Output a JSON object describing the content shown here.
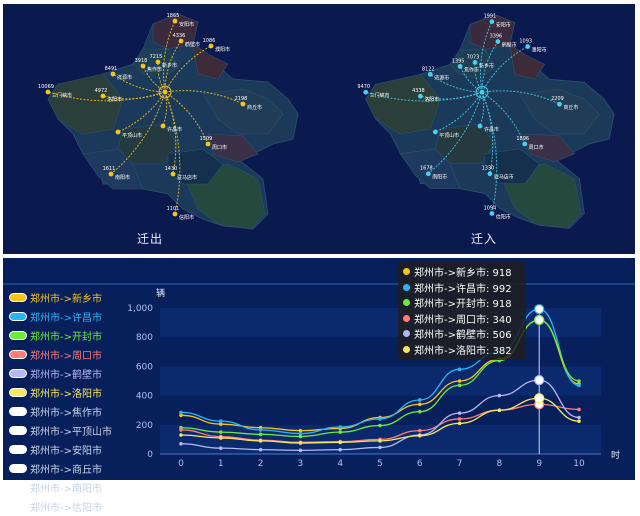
{
  "colors": {
    "out_flow": "#f5c518",
    "in_flow": "#46d2ea",
    "panel_bg": "#0a1a4f",
    "chart_bg": "#07205c"
  },
  "maps": [
    {
      "title": "迁出",
      "flow_color": "#f5c518",
      "cities": [
        {
          "name": "1865",
          "sub": "安阳市"
        },
        {
          "name": "4336",
          "sub": "鹤壁市"
        },
        {
          "name": "1086",
          "sub": "濮阳市"
        },
        {
          "name": "3918",
          "sub": "焦作市"
        },
        {
          "name": "7215",
          "sub": "新乡市"
        },
        {
          "name": "8491",
          "sub": "济源市"
        },
        {
          "name": "10069",
          "sub": "三门峡市"
        },
        {
          "name": "4972",
          "sub": "洛阳市"
        },
        {
          "name": "2198",
          "sub": "商丘市"
        },
        {
          "name": "",
          "sub": "平顶山市"
        },
        {
          "name": "",
          "sub": "许昌市"
        },
        {
          "name": "1509",
          "sub": "周口市"
        },
        {
          "name": "1611",
          "sub": "南阳市"
        },
        {
          "name": "1430",
          "sub": "驻马店市"
        },
        {
          "name": "1101",
          "sub": "信阳市"
        }
      ]
    },
    {
      "title": "迁入",
      "flow_color": "#46d2ea",
      "cities": [
        {
          "name": "1991",
          "sub": "安阳市"
        },
        {
          "name": "3396",
          "sub": "鹤壁市"
        },
        {
          "name": "1093",
          "sub": "濮阳市"
        },
        {
          "name": "1395",
          "sub": "焦作市"
        },
        {
          "name": "7073",
          "sub": "新乡市"
        },
        {
          "name": "8122",
          "sub": "济源市"
        },
        {
          "name": "9470",
          "sub": "三门峡市"
        },
        {
          "name": "4338",
          "sub": "洛阳市"
        },
        {
          "name": "2209",
          "sub": "商丘市"
        },
        {
          "name": "",
          "sub": "平顶山市"
        },
        {
          "name": "",
          "sub": "许昌市"
        },
        {
          "name": "1896",
          "sub": "周口市"
        },
        {
          "name": "1678",
          "sub": "南阳市"
        },
        {
          "name": "1330",
          "sub": "驻马店市"
        },
        {
          "name": "1094",
          "sub": "信阳市"
        }
      ]
    }
  ],
  "legend": [
    {
      "label": "郑州市->新乡市",
      "color": "#f5c518",
      "active": true
    },
    {
      "label": "郑州市->许昌市",
      "color": "#29b6f6",
      "active": true
    },
    {
      "label": "郑州市->开封市",
      "color": "#6dea3c",
      "active": true
    },
    {
      "label": "郑州市->周口市",
      "color": "#ff7b7b",
      "active": true
    },
    {
      "label": "郑州市->鹤壁市",
      "color": "#b3b8f2",
      "active": true
    },
    {
      "label": "郑州市->洛阳市",
      "color": "#f6e85a",
      "active": true
    },
    {
      "label": "郑州市->焦作市",
      "color": "#c9d3e6",
      "active": false
    },
    {
      "label": "郑州市->平顶山市",
      "color": "#c9d3e6",
      "active": false
    },
    {
      "label": "郑州市->安阳市",
      "color": "#c9d3e6",
      "active": false
    },
    {
      "label": "郑州市->商丘市",
      "color": "#c9d3e6",
      "active": false
    },
    {
      "label": "郑州市->南阳市",
      "color": "#c9d3e6",
      "active": false
    },
    {
      "label": "郑州市->信阳市",
      "color": "#c9d3e6",
      "active": false
    }
  ],
  "tooltip": [
    {
      "text": "郑州市->新乡市: 918",
      "color": "#f5c518"
    },
    {
      "text": "郑州市->许昌市: 992",
      "color": "#29b6f6"
    },
    {
      "text": "郑州市->开封市: 918",
      "color": "#6dea3c"
    },
    {
      "text": "郑州市->周口市: 340",
      "color": "#ff7b7b"
    },
    {
      "text": "郑州市->鹤壁市: 506",
      "color": "#b3b8f2"
    },
    {
      "text": "郑州市->洛阳市: 382",
      "color": "#f6e85a"
    }
  ],
  "chart_data": {
    "type": "line",
    "title": "",
    "xlabel": "时",
    "ylabel": "辆",
    "x": [
      0,
      1,
      2,
      3,
      4,
      5,
      6,
      7,
      8,
      9,
      10
    ],
    "ylim": [
      0,
      1000
    ],
    "yticks": [
      "0",
      "200",
      "400",
      "600",
      "800",
      "1,000"
    ],
    "highlight_x": 9,
    "series": [
      {
        "name": "郑州市->新乡市",
        "color": "#f5c518",
        "values": [
          265,
          205,
          180,
          160,
          175,
          250,
          340,
          500,
          650,
          918,
          480
        ]
      },
      {
        "name": "郑州市->许昌市",
        "color": "#29b6f6",
        "values": [
          285,
          225,
          165,
          140,
          185,
          240,
          370,
          580,
          700,
          992,
          470
        ]
      },
      {
        "name": "郑州市->开封市",
        "color": "#6dea3c",
        "values": [
          180,
          150,
          135,
          120,
          150,
          195,
          290,
          470,
          640,
          918,
          500
        ]
      },
      {
        "name": "郑州市->周口市",
        "color": "#ff7b7b",
        "values": [
          165,
          120,
          95,
          80,
          85,
          100,
          160,
          240,
          300,
          340,
          305
        ]
      },
      {
        "name": "郑州市->鹤壁市",
        "color": "#b3b8f2",
        "values": [
          70,
          40,
          30,
          25,
          30,
          45,
          130,
          280,
          400,
          506,
          250
        ]
      },
      {
        "name": "郑州市->洛阳市",
        "color": "#f6e85a",
        "values": [
          130,
          110,
          90,
          75,
          80,
          90,
          125,
          210,
          300,
          382,
          225
        ]
      }
    ]
  }
}
